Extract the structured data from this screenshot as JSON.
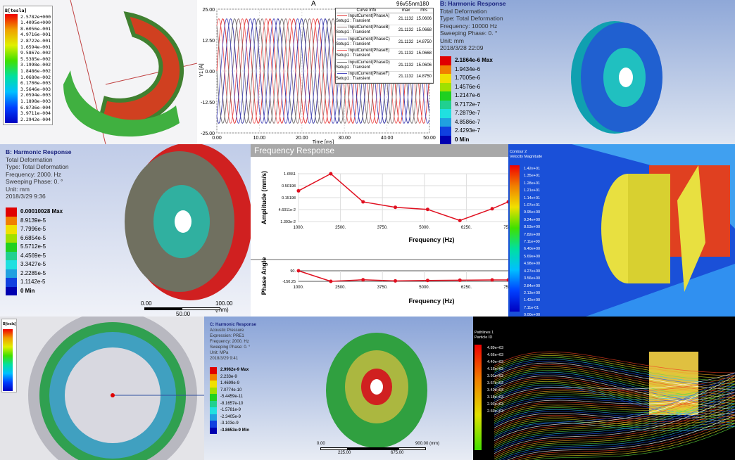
{
  "tile1": {
    "legend_title": "B[tesla]",
    "legend_values": [
      "2.5782e+000",
      "1.4095e+000",
      "8.6056e-001",
      "4.9716e-001",
      "2.8722e-001",
      "1.6594e-001",
      "9.5867e-002",
      "5.5385e-002",
      "3.1998e-002",
      "1.8486e-002",
      "1.0680e-002",
      "6.1700e-003",
      "3.5646e-003",
      "2.0594e-003",
      "1.1898e-003",
      "6.8736e-004",
      "3.9711e-004",
      "2.2942e-004"
    ]
  },
  "tile2": {
    "chart_data": {
      "type": "line",
      "title": "A",
      "subtitle": "96v55nm180",
      "xlabel": "Time [ms]",
      "ylabel": "Y1 [A]",
      "xlim": [
        0,
        50
      ],
      "ylim": [
        -25,
        25
      ],
      "xticks": [
        "0.00",
        "10.00",
        "20.00",
        "30.00",
        "40.00",
        "50.00"
      ],
      "yticks": [
        "25.00",
        "12.50",
        "0.00",
        "-12.50",
        "-25.00"
      ],
      "grid": true,
      "legend_placement": "top-right",
      "legend_headers": [
        "Curve Info",
        "max",
        "rms"
      ],
      "amplitude": 21.1132,
      "period_ms": 5.56,
      "series": [
        {
          "name": "InputCurrent(PhaseA)",
          "source": "Setup1 : Transient",
          "max": "21.1132",
          "rms": "15.0606",
          "color": "#e03030",
          "phase_deg": 0
        },
        {
          "name": "InputCurrent(PhaseB)",
          "source": "Setup1 : Transient",
          "max": "21.1132",
          "rms": "15.0668",
          "color": "#8a7070",
          "phase_deg": 120
        },
        {
          "name": "InputCurrent(PhaseC)",
          "source": "Setup1 : Transient",
          "max": "21.1132",
          "rms": "14.8750",
          "color": "#3030a0",
          "phase_deg": 240
        },
        {
          "name": "InputCurrent(PhaseE)",
          "source": "Setup1 : Transient",
          "max": "21.1132",
          "rms": "15.0668",
          "color": "#f06060",
          "phase_deg": 60
        },
        {
          "name": "InputCurrent(PhaseD)",
          "source": "Setup1 : Transient",
          "max": "21.1132",
          "rms": "15.0606",
          "color": "#707070",
          "phase_deg": 180
        },
        {
          "name": "InputCurrent(PhaseF)",
          "source": "Setup1 : Transient",
          "max": "21.1132",
          "rms": "14.8750",
          "color": "#5050c0",
          "phase_deg": 300
        }
      ]
    }
  },
  "tile3": {
    "header": [
      "B: Harmonic Response",
      "Total Deformation",
      "Type: Total Deformation",
      "Frequency: 10000 Hz",
      "Sweeping Phase: 0. °",
      "Unit: mm",
      "2018/3/28 22:09"
    ],
    "legend_values": [
      "2.1864e-6 Max",
      "1.9434e-6",
      "1.7005e-6",
      "1.4576e-6",
      "1.2147e-6",
      "9.7172e-7",
      "7.2879e-7",
      "4.8586e-7",
      "2.4293e-7",
      "0 Min"
    ]
  },
  "tile4": {
    "header": [
      "B: Harmonic Response",
      "Total Deformation",
      "Type: Total Deformation",
      "Frequency: 2000. Hz",
      "Sweeping Phase: 0. °",
      "Unit: mm",
      "2018/3/29 9:36"
    ],
    "legend_values": [
      "0.00010028 Max",
      "8.9139e-5",
      "7.7996e-5",
      "6.6854e-5",
      "5.5712e-5",
      "4.4569e-5",
      "3.3427e-5",
      "2.2285e-5",
      "1.1142e-5",
      "0 Min"
    ],
    "scale": [
      "0.00",
      "50.00",
      "100.00 (mm)"
    ]
  },
  "tile5": {
    "title": "Frequency Response",
    "chart_data": [
      {
        "type": "line",
        "xlabel": "Frequency (Hz)",
        "ylabel": "Amplitude (mm/s)",
        "yscale": "log",
        "xticks": [
          "1000.",
          "2500.",
          "3750.",
          "5000.",
          "6250.",
          "7500"
        ],
        "yticks": [
          "1.6551",
          "0.50198",
          "0.15198",
          "4.6011e-2",
          "1.393e-2"
        ],
        "x": [
          1000,
          2000,
          3000,
          4000,
          5000,
          6000,
          7000,
          7500
        ],
        "y": [
          0.3,
          1.6551,
          0.1,
          0.058,
          0.047,
          0.0155,
          0.05,
          0.1
        ],
        "color": "#e01020"
      },
      {
        "type": "line",
        "xlabel": "Frequency (Hz)",
        "ylabel": "Phase Angle",
        "yticks": [
          "90.",
          "-150.25"
        ],
        "xticks": [
          "1000.",
          "2500.",
          "3750.",
          "5000.",
          "6250.",
          "7500"
        ],
        "x": [
          1000,
          2000,
          3000,
          4000,
          5000,
          6000,
          7000,
          7500
        ],
        "y": [
          90,
          -150,
          -115,
          -140,
          -130,
          -125,
          -118,
          -118
        ],
        "color": "#e01020"
      }
    ]
  },
  "tile6": {
    "legend_title": [
      "Contour 2",
      "Velocity Magnitude"
    ],
    "legend_values": [
      "1.42e+01",
      "1.35e+01",
      "1.28e+01",
      "1.21e+01",
      "1.14e+01",
      "1.07e+01",
      "9.95e+00",
      "9.24e+00",
      "8.53e+00",
      "7.82e+00",
      "7.11e+00",
      "6.40e+00",
      "5.69e+00",
      "4.98e+00",
      "4.27e+00",
      "3.56e+00",
      "2.84e+00",
      "2.13e+00",
      "1.42e+00",
      "7.11e-01",
      "0.00e+00"
    ]
  },
  "tile7": {
    "legend_title": "B[tesla]"
  },
  "tile8": {
    "header": [
      "C: Harmonic Response",
      "Acoustic Pressure",
      "Expression: PRE1",
      "Frequency: 2000. Hz",
      "Sweeping Phase: 0. °",
      "Unit: MPa",
      "2018/3/29 9:41"
    ],
    "legend_values": [
      "2.9962e-9 Max",
      "2.233e-9",
      "1.4699e-9",
      "7.0774e-10",
      "-5.4459e-11",
      "-8.1657e-10",
      "-1.5781e-9",
      "-2.3405e-9",
      "-3.103e-9",
      "-3.8653e-9 Min"
    ],
    "scale": [
      "0.00",
      "225.00",
      "675.00",
      "900.00 (mm)"
    ]
  },
  "tile9": {
    "legend_title": [
      "Pathlines 1",
      "Particle ID"
    ],
    "legend_values": [
      "4.89e+03",
      "4.66e+03",
      "4.40e+03",
      "4.16e+03",
      "3.91e+03",
      "3.67e+03",
      "3.42e+03",
      "3.18e+03",
      "2.93e+03",
      "2.69e+03"
    ]
  },
  "colors": {
    "rainbow10": [
      "#e00000",
      "#f08000",
      "#f0e000",
      "#a0e000",
      "#20d020",
      "#20d090",
      "#20e0e0",
      "#20a0e0",
      "#1040e0",
      "#0000b0"
    ]
  }
}
